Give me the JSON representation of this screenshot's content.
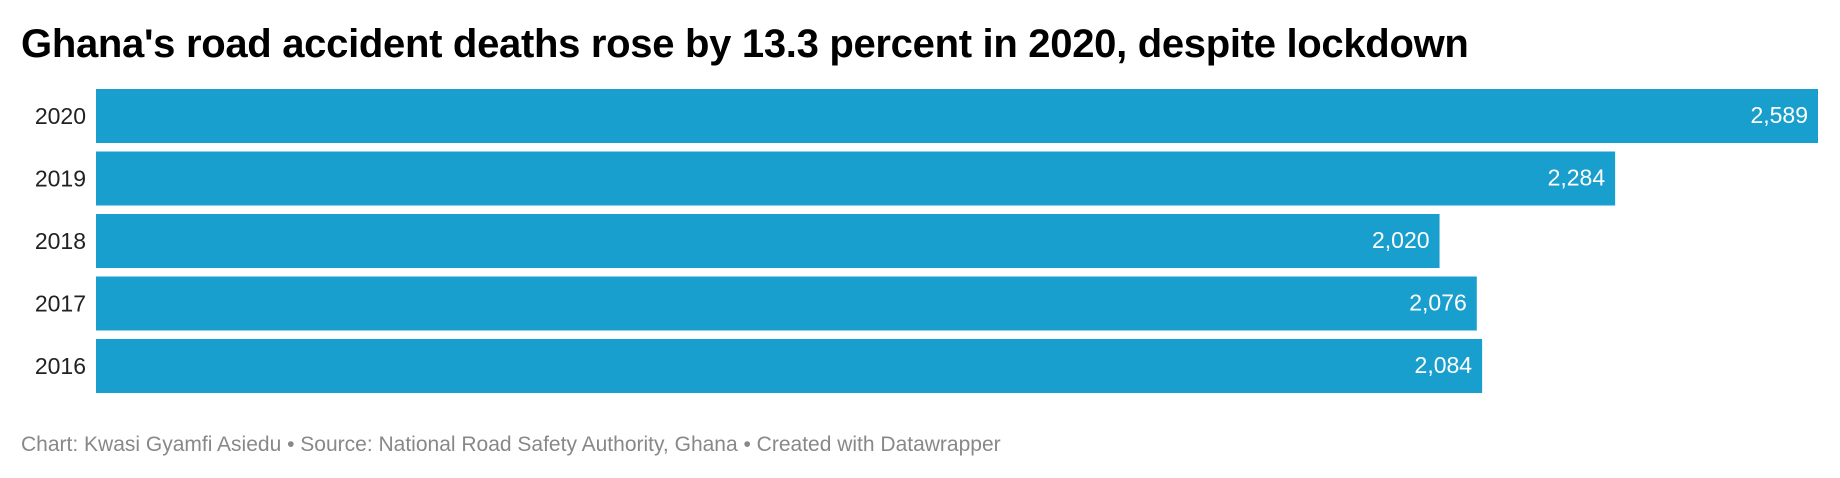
{
  "title": "Ghana's road accident deaths rose by 13.3 percent in 2020, despite lockdown",
  "footer": "Chart: Kwasi Gyamfi Asiedu • Source: National Road Safety Authority, Ghana • Created with Datawrapper",
  "colors": {
    "bar": "#199fcd",
    "bar_label": "#ffffff",
    "category_label": "#222222",
    "footer_text": "#888888"
  },
  "chart_data": {
    "type": "bar",
    "orientation": "horizontal",
    "categories": [
      "2020",
      "2019",
      "2018",
      "2017",
      "2016"
    ],
    "values": [
      2589,
      2284,
      2020,
      2076,
      2084
    ],
    "value_labels": [
      "2,589",
      "2,284",
      "2,020",
      "2,076",
      "2,084"
    ],
    "title": "Ghana's road accident deaths rose by 13.3 percent in 2020, despite lockdown",
    "xlabel": "",
    "ylabel": "",
    "xlim": [
      0,
      2589
    ],
    "grid": false,
    "legend": "none"
  }
}
